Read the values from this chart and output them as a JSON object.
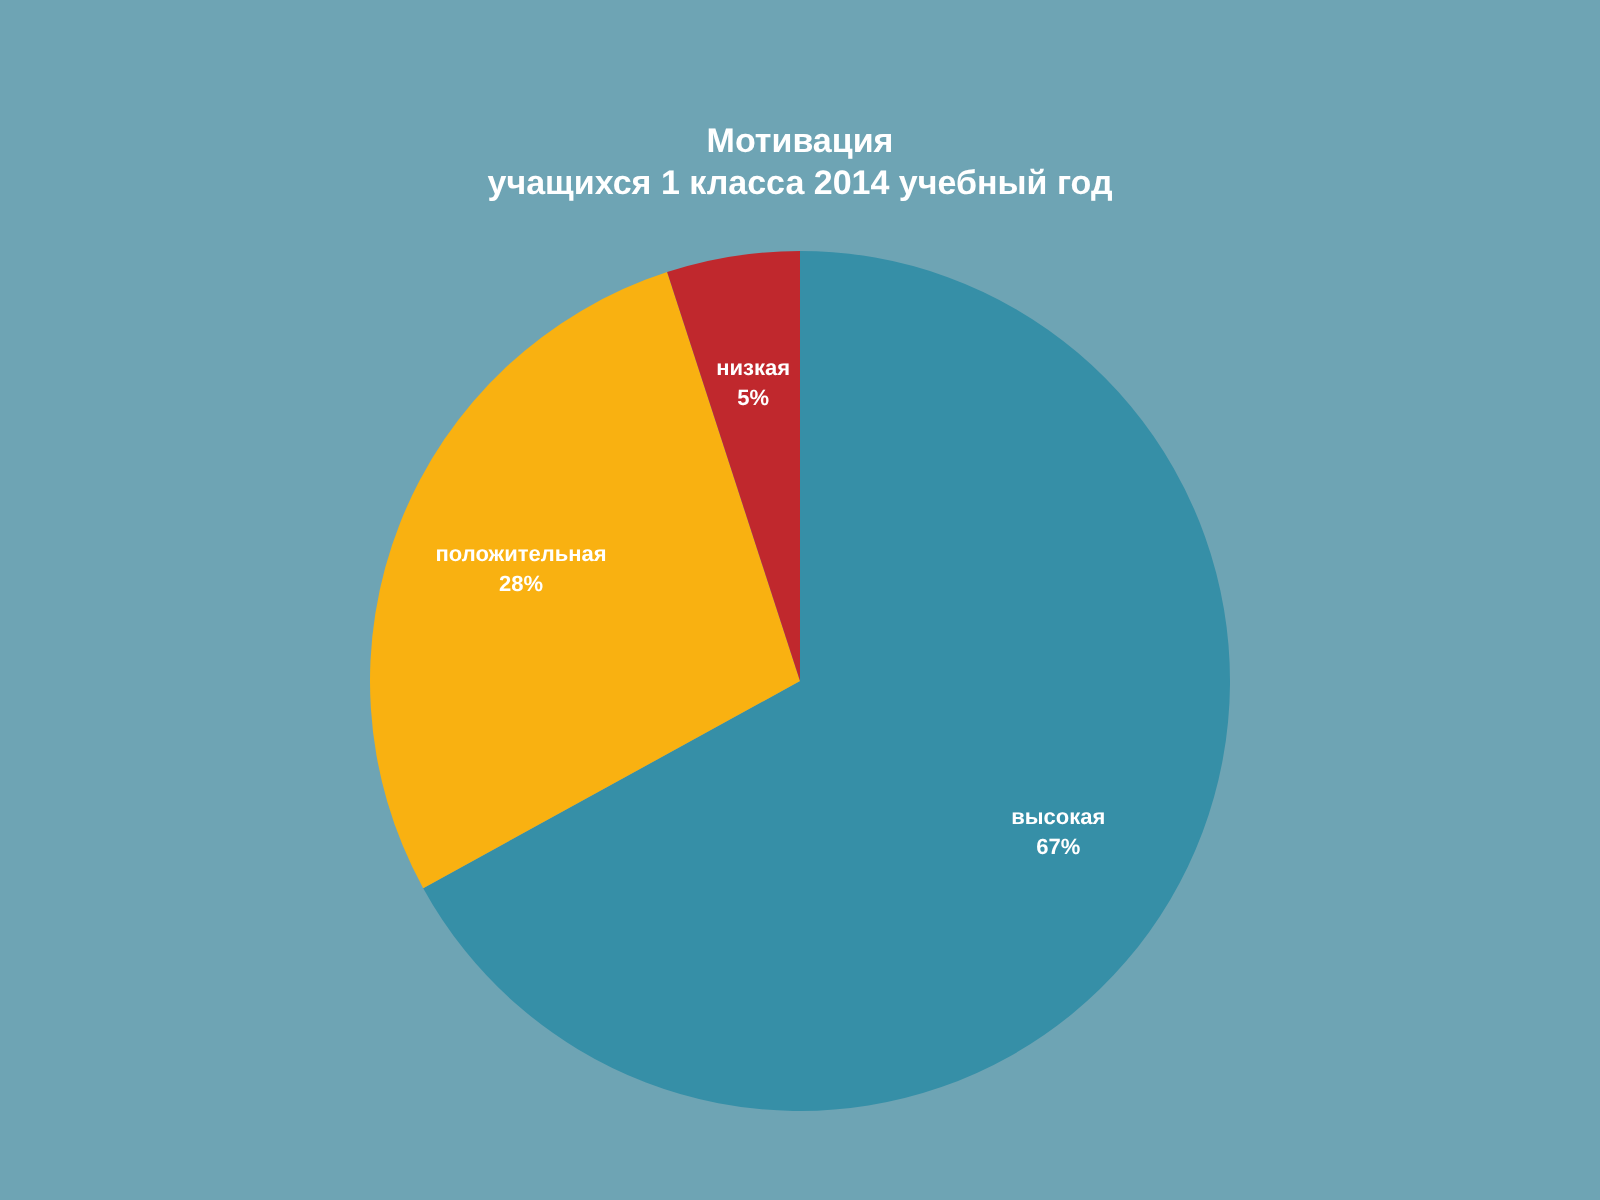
{
  "chart_data": {
    "type": "pie",
    "title": "Мотивация\nучащихся 1 класса  2014 учебный год",
    "categories": [
      "высокая",
      "положительная",
      "низкая"
    ],
    "values": [
      67,
      28,
      5
    ],
    "value_labels": [
      "67%",
      "28%",
      "5%"
    ],
    "colors": [
      "#368fa7",
      "#f9b111",
      "#c0282d"
    ]
  }
}
